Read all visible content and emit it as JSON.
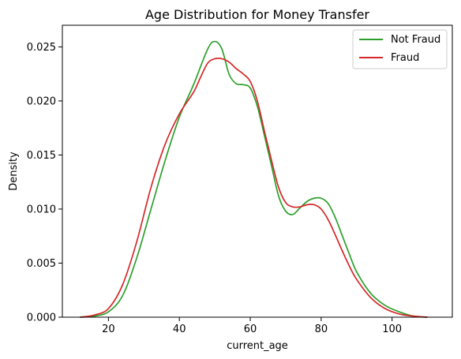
{
  "chart_data": {
    "type": "line",
    "title": "Age Distribution for Money Transfer",
    "xlabel": "current_age",
    "ylabel": "Density",
    "xlim": [
      7,
      117
    ],
    "ylim": [
      0,
      0.027
    ],
    "xticks": [
      20,
      40,
      60,
      80,
      100
    ],
    "yticks": [
      0.0,
      0.005,
      0.01,
      0.015,
      0.02,
      0.025
    ],
    "ytick_labels": [
      "0.000",
      "0.005",
      "0.010",
      "0.015",
      "0.020",
      "0.025"
    ],
    "grid": false,
    "legend_position": "top-right",
    "series": [
      {
        "name": "Not Fraud",
        "color": "#2ca02c",
        "x": [
          12,
          16,
          20,
          24,
          28,
          32,
          36,
          40,
          44,
          48,
          50,
          52,
          54,
          56,
          58,
          60,
          62,
          64,
          66,
          68,
          70,
          72,
          74,
          76,
          78,
          80,
          82,
          84,
          86,
          88,
          90,
          94,
          98,
          102,
          106,
          110
        ],
        "y": [
          0.0,
          0.0001,
          0.0005,
          0.002,
          0.0055,
          0.01,
          0.0145,
          0.0185,
          0.0215,
          0.0248,
          0.0255,
          0.0248,
          0.0225,
          0.0216,
          0.0215,
          0.0212,
          0.0195,
          0.0168,
          0.014,
          0.0112,
          0.0098,
          0.0095,
          0.0101,
          0.0107,
          0.011,
          0.011,
          0.0105,
          0.0092,
          0.0075,
          0.0058,
          0.0042,
          0.0022,
          0.0011,
          0.0005,
          0.0001,
          0.0
        ]
      },
      {
        "name": "Fraud",
        "color": "#d62728",
        "x": [
          12,
          16,
          20,
          24,
          28,
          32,
          36,
          40,
          44,
          46,
          48,
          50,
          52,
          54,
          56,
          58,
          60,
          62,
          64,
          66,
          68,
          70,
          72,
          74,
          76,
          78,
          80,
          82,
          84,
          86,
          88,
          90,
          94,
          98,
          102,
          106,
          110
        ],
        "y": [
          0.0,
          0.0002,
          0.0008,
          0.003,
          0.007,
          0.012,
          0.016,
          0.0188,
          0.0208,
          0.0222,
          0.0235,
          0.0239,
          0.0239,
          0.0236,
          0.023,
          0.0225,
          0.0218,
          0.02,
          0.0172,
          0.0145,
          0.012,
          0.0106,
          0.0102,
          0.0102,
          0.0104,
          0.0104,
          0.01,
          0.009,
          0.0076,
          0.0061,
          0.0047,
          0.0035,
          0.0018,
          0.0008,
          0.0003,
          0.0001,
          0.0
        ]
      }
    ]
  }
}
